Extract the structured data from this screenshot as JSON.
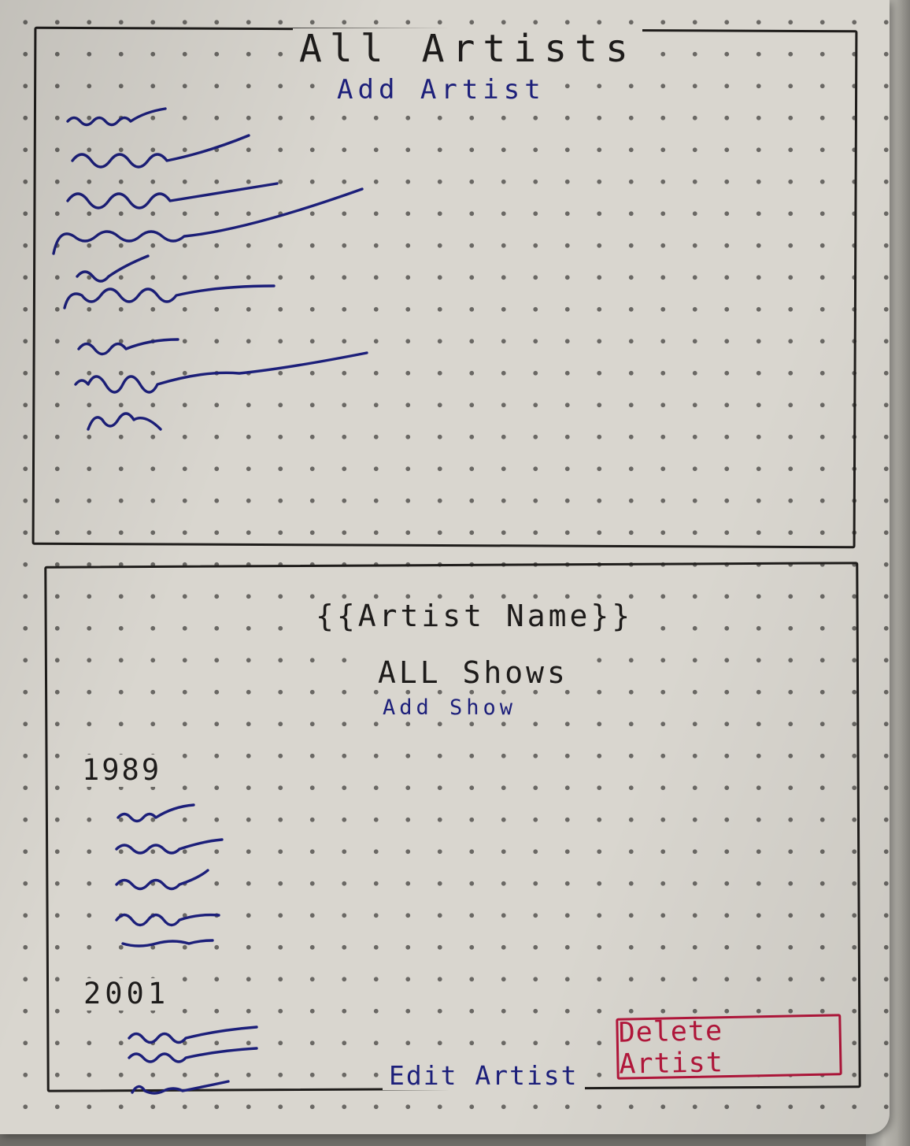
{
  "artists_view": {
    "title": "All Artists",
    "add_artist_label": "Add Artist",
    "artist_list_item_count": 9
  },
  "artist_detail_view": {
    "artist_name_placeholder": "{{Artist Name}}",
    "shows_heading": "ALL Shows",
    "add_show_label": "Add Show",
    "show_groups": [
      {
        "year": "1989",
        "show_count": 5
      },
      {
        "year": "2001",
        "show_count": 3
      }
    ],
    "edit_artist_label": "Edit Artist",
    "delete_artist_label": "Delete Artist"
  },
  "colors": {
    "ink_black": "#1d1b1a",
    "ink_blue": "#1c1f7a",
    "ink_red": "#b3163b",
    "paper": "#d9d6cf"
  }
}
